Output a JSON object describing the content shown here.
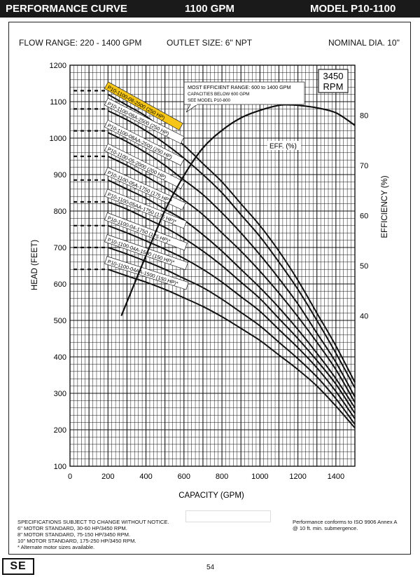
{
  "header": {
    "title": "PERFORMANCE CURVE",
    "flow": "1100 GPM",
    "model": "MODEL  P10-1100"
  },
  "info": {
    "flow_range": "FLOW RANGE: 220 - 1400 GPM",
    "outlet": "OUTLET SIZE: 6\" NPT",
    "nominal": "NOMINAL DIA. 10\""
  },
  "footer": {
    "line1": "SPECIFICATIONS SUBJECT TO CHANGE WITHOUT NOTICE.",
    "line2": "6\" MOTOR STANDARD, 30-60 HP/3450 RPM.",
    "line3": "8\" MOTOR STANDARD, 75-150 HP/3450 RPM.",
    "line4": "10\" MOTOR STANDARD, 175-250 HP/3450 RPM.",
    "line5": "* Alternate motor sizes available.",
    "right1": "Performance conforms to ISO 9906 Annex A",
    "right2": "@ 10 ft. min. submergence.",
    "logo": "SE",
    "page": "54"
  },
  "chart_data": {
    "type": "line",
    "xlabel": "CAPACITY (GPM)",
    "ylabel": "HEAD (FEET)",
    "y2label": "EFFICIENCY (%)",
    "xlim": [
      0,
      1500
    ],
    "ylim": [
      100,
      1200
    ],
    "y2lim": [
      10,
      90
    ],
    "x_ticks": [
      0,
      200,
      400,
      600,
      800,
      1000,
      1200,
      1400
    ],
    "y_ticks": [
      100,
      200,
      300,
      400,
      500,
      600,
      700,
      800,
      900,
      1000,
      1100,
      1200
    ],
    "y2_ticks": [
      40,
      50,
      60,
      70,
      80
    ],
    "rpm_box": [
      "3450",
      "RPM"
    ],
    "annotation": {
      "title": "MOST EFFICIENT RANGE: 600 to 1400 GPM",
      "line2": "CAPACITIES BELOW 600 GPM",
      "line3": "SEE  MODEL  P10-800"
    },
    "efficiency_label": "EFF. (%)",
    "efficiency": {
      "x": [
        270,
        400,
        500,
        600,
        700,
        800,
        900,
        1000,
        1100,
        1150,
        1200,
        1300,
        1400,
        1500
      ],
      "y": [
        40,
        52,
        61,
        68,
        73.5,
        77,
        79.5,
        81,
        82,
        82.1,
        82,
        81.5,
        80.5,
        78
      ]
    },
    "series": [
      {
        "name": "P10-1100-08-2500 (250 HP)",
        "highlight": true,
        "x": [
          200,
          300,
          400,
          500,
          600,
          700,
          800,
          900,
          1000,
          1100,
          1200,
          1300,
          1400,
          1500
        ],
        "y": [
          1120,
          1090,
          1060,
          1020,
          980,
          930,
          880,
          820,
          760,
          690,
          610,
          520,
          430,
          330
        ]
      },
      {
        "name": "P10-1100-08A-2500 (250 HP)",
        "x": [
          200,
          300,
          400,
          500,
          600,
          700,
          800,
          900,
          1000,
          1100,
          1200,
          1300,
          1400,
          1500
        ],
        "y": [
          1075,
          1050,
          1020,
          985,
          945,
          900,
          850,
          790,
          730,
          660,
          585,
          500,
          410,
          315
        ]
      },
      {
        "name": "P10-1100-08AA-2500 (250 HP)",
        "x": [
          200,
          300,
          400,
          500,
          600,
          700,
          800,
          900,
          1000,
          1100,
          1200,
          1300,
          1400,
          1500
        ],
        "y": [
          1015,
          990,
          960,
          925,
          885,
          845,
          795,
          740,
          680,
          615,
          545,
          465,
          385,
          290
        ]
      },
      {
        "name": "P10-1100-05-2000 (200 HP)",
        "x": [
          200,
          300,
          400,
          500,
          600,
          700,
          800,
          900,
          1000,
          1100,
          1200,
          1300,
          1400,
          1500
        ],
        "y": [
          950,
          925,
          895,
          865,
          830,
          790,
          740,
          690,
          635,
          575,
          510,
          440,
          365,
          275
        ]
      },
      {
        "name": "P10-1100-05A-1750 (175 HP)*",
        "x": [
          200,
          300,
          400,
          500,
          600,
          700,
          800,
          900,
          1000,
          1100,
          1200,
          1300,
          1400,
          1500
        ],
        "y": [
          885,
          860,
          835,
          805,
          775,
          735,
          690,
          640,
          590,
          535,
          475,
          410,
          340,
          260
        ]
      },
      {
        "name": "P10-1100-05AA-1750 (175 HP)*",
        "x": [
          200,
          300,
          400,
          500,
          600,
          700,
          800,
          900,
          1000,
          1100,
          1200,
          1300,
          1400,
          1500
        ],
        "y": [
          825,
          805,
          780,
          755,
          725,
          690,
          650,
          605,
          560,
          505,
          450,
          390,
          325,
          245
        ]
      },
      {
        "name": "P10-1100-04-1750 (175 HP)*",
        "x": [
          200,
          300,
          400,
          500,
          600,
          700,
          800,
          900,
          1000,
          1100,
          1200,
          1300,
          1400,
          1500
        ],
        "y": [
          760,
          740,
          718,
          695,
          670,
          640,
          605,
          565,
          525,
          475,
          425,
          370,
          305,
          230
        ]
      },
      {
        "name": "P10-1100-04A-1500 (150 HP)*",
        "x": [
          200,
          300,
          400,
          500,
          600,
          700,
          800,
          900,
          1000,
          1100,
          1200,
          1300,
          1400,
          1500
        ],
        "y": [
          700,
          682,
          662,
          640,
          615,
          590,
          558,
          522,
          485,
          440,
          395,
          345,
          285,
          215
        ]
      },
      {
        "name": "P10-1100-04AA-1500 (150 HP)*",
        "x": [
          200,
          300,
          400,
          500,
          600,
          700,
          800,
          900,
          1000,
          1100,
          1200,
          1300,
          1400,
          1500
        ],
        "y": [
          640,
          622,
          605,
          585,
          562,
          538,
          510,
          478,
          445,
          405,
          365,
          320,
          265,
          205
        ]
      }
    ],
    "shutoff_dashes": [
      1130,
      1080,
      1020,
      950,
      885,
      825,
      760,
      700,
      640
    ]
  }
}
